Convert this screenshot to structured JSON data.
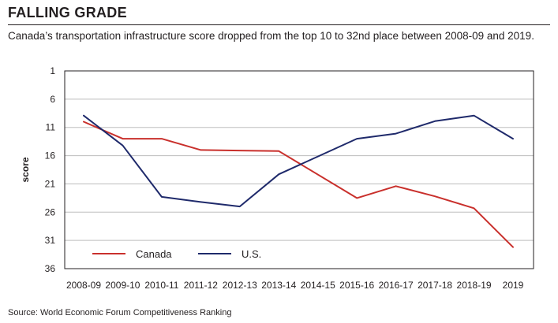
{
  "header": {
    "title": "FALLING GRADE",
    "subtitle": "Canada’s transportation infrastructure score dropped from the top 10 to 32nd place between 2008-09 and 2019."
  },
  "footer": {
    "source": "Source: World Economic Forum Competitiveness Ranking"
  },
  "chart_data": {
    "type": "line",
    "categories": [
      "2008-09",
      "2009-10",
      "2010-11",
      "2011-12",
      "2012-13",
      "2013-14",
      "2014-15",
      "2015-16",
      "2016-17",
      "2017-18",
      "2018-19",
      "2019"
    ],
    "series": [
      {
        "name": "Canada",
        "color": "#c9302c",
        "values": [
          10,
          13,
          13,
          15,
          15.1,
          15.2,
          null,
          23.5,
          21.4,
          23.2,
          25.3,
          32.2
        ]
      },
      {
        "name": "U.S.",
        "color": "#1f2a6b",
        "values": [
          8.9,
          14.2,
          23.3,
          24.2,
          25,
          19.3,
          null,
          13,
          12.1,
          9.9,
          8.9,
          13
        ]
      }
    ],
    "title": "",
    "xlabel": "",
    "ylabel": "score",
    "yticks": [
      1,
      6,
      11,
      16,
      21,
      26,
      31,
      36
    ],
    "ylim": [
      1,
      36
    ],
    "y_inverted": true,
    "grid": "horizontal",
    "legend": "bottom-left"
  }
}
